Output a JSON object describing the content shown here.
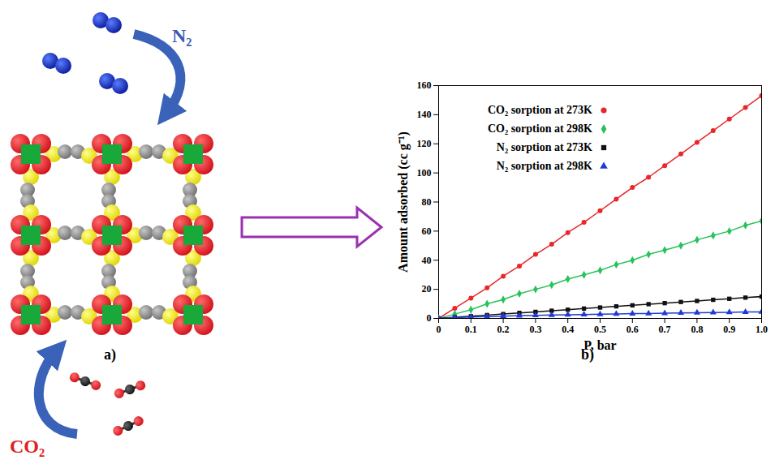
{
  "chart_data": {
    "type": "line",
    "xlabel": "P, bar",
    "ylabel": "Amount adsorbed (cc g⁻¹)",
    "panel_label": "b)",
    "x": [
      0,
      0.05,
      0.1,
      0.15,
      0.2,
      0.25,
      0.3,
      0.35,
      0.4,
      0.45,
      0.5,
      0.55,
      0.6,
      0.65,
      0.7,
      0.75,
      0.8,
      0.85,
      0.9,
      0.95,
      1
    ],
    "series": [
      {
        "name": "CO₂ sorption at 273K",
        "color": "#e8272b",
        "marker": "circle",
        "values": [
          0,
          7,
          14,
          21,
          29,
          36,
          44,
          51,
          59,
          66,
          74,
          82,
          90,
          97,
          105,
          113,
          121,
          129,
          137,
          145,
          153
        ]
      },
      {
        "name": "CO₂ sorption at 298K",
        "color": "#27c25a",
        "marker": "diamond",
        "values": [
          0,
          3,
          6,
          10,
          13,
          17,
          20,
          23,
          27,
          30,
          33,
          37,
          40,
          44,
          47,
          50,
          54,
          57,
          60,
          64,
          67
        ]
      },
      {
        "name": "N₂ sorption at 273K",
        "color": "#111111",
        "marker": "square",
        "values": [
          0,
          0.8,
          1.5,
          2.3,
          3,
          3.8,
          4.5,
          5.3,
          6,
          6.8,
          7.5,
          8.3,
          9,
          9.8,
          10.5,
          11.3,
          12,
          12.8,
          13.5,
          14.3,
          15
        ]
      },
      {
        "name": "N₂ sorption at 298K",
        "color": "#1f3bd6",
        "marker": "triangle",
        "values": [
          0,
          0.5,
          1,
          1.3,
          1.6,
          1.9,
          2.1,
          2.3,
          2.5,
          2.7,
          2.9,
          3.1,
          3.3,
          3.4,
          3.6,
          3.8,
          3.9,
          4.1,
          4.2,
          4.4,
          4.5
        ]
      }
    ],
    "xlim": [
      0,
      1
    ],
    "xticks": [
      0,
      0.1,
      0.2,
      0.3,
      0.4,
      0.5,
      0.6,
      0.7,
      0.8,
      0.9,
      {
        "value": 1,
        "label": "1.0"
      }
    ],
    "ylim": [
      0,
      160
    ],
    "yticks": [
      0,
      20,
      40,
      60,
      80,
      100,
      120,
      140,
      160
    ],
    "legend": "top-left"
  },
  "diagram": {
    "panel_label": "a)",
    "labels": [
      {
        "text": "N₂",
        "color": "#3b5bb5"
      },
      {
        "text": "CO₂",
        "color": "#e02020"
      }
    ]
  }
}
